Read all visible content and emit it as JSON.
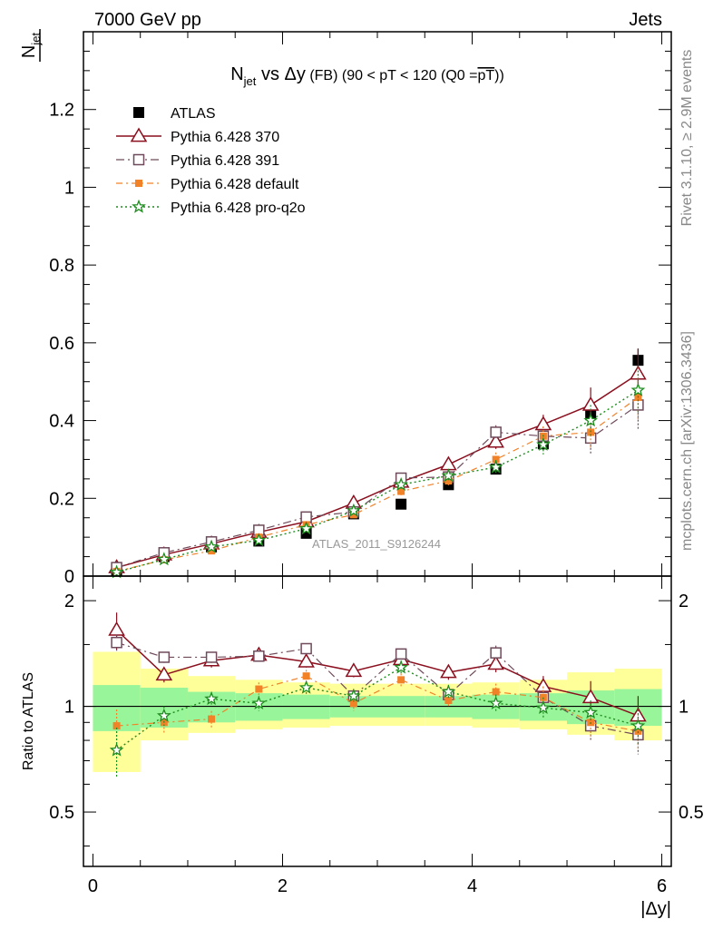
{
  "header": {
    "left": "7000 GeV pp",
    "right": "Jets"
  },
  "side_labels": {
    "rivet": "Rivet 3.1.10, ≥ 2.9M events",
    "mcplots": "mcplots.cern.ch [arXiv:1306.3436]"
  },
  "watermark": "ATLAS_2011_S9126244",
  "colors": {
    "ATLAS": "#000000",
    "p370": "#8b0f1e",
    "p391": "#6e4a5a",
    "default": "#f28228",
    "proq2o": "#1e8c1e",
    "band_inner": "#99f599",
    "band_outer": "#ffff99"
  },
  "chart_data": [
    {
      "type": "scatter",
      "title": {
        "main": "N",
        "main_sub": "jet",
        "mid": " vs Δy",
        "rest": " (FB) (90 < pT < 120 (Q0 =",
        "over": "pT",
        "end": "))"
      },
      "ylabel": {
        "num": "N",
        "num_sub": "jet",
        "den": ""
      },
      "xlim": [
        -0.1,
        6.1
      ],
      "ylim": [
        0,
        1.4
      ],
      "yticks": [
        0,
        0.2,
        0.4,
        0.6,
        0.8,
        1,
        1.2
      ],
      "ytick_labels": [
        "0",
        "0.2",
        "0.4",
        "0.6",
        "0.8",
        "1",
        "1.2"
      ],
      "legend_position": "top-left",
      "legend": [
        {
          "key": "ATLAS",
          "label": "ATLAS",
          "marker": "filled-square"
        },
        {
          "key": "p370",
          "label": "Pythia 6.428 370",
          "marker": "open-triangle"
        },
        {
          "key": "p391",
          "label": "Pythia 6.428 391",
          "marker": "open-square"
        },
        {
          "key": "default",
          "label": "Pythia 6.428 default",
          "marker": "filled-small-square"
        },
        {
          "key": "proq2o",
          "label": "Pythia 6.428 pro-q2o",
          "marker": "open-star"
        }
      ],
      "x": [
        0.25,
        0.75,
        1.25,
        1.75,
        2.25,
        2.75,
        3.25,
        3.75,
        4.25,
        4.75,
        5.25,
        5.75
      ],
      "data_errors": [
        0.003,
        0.004,
        0.005,
        0.006,
        0.007,
        0.008,
        0.009,
        0.011,
        0.013,
        0.015,
        0.02,
        0.03
      ],
      "series": [
        {
          "key": "ATLAS",
          "name": "ATLAS",
          "values": [
            0.015,
            0.05,
            0.075,
            0.09,
            0.11,
            0.16,
            0.185,
            0.235,
            0.275,
            0.34,
            0.415,
            0.555
          ]
        },
        {
          "key": "p370",
          "name": "Pythia 6.428 370",
          "values": [
            0.022,
            0.055,
            0.083,
            0.113,
            0.14,
            0.188,
            0.242,
            0.287,
            0.345,
            0.39,
            0.44,
            0.52
          ],
          "errors": [
            0.003,
            0.004,
            0.005,
            0.006,
            0.007,
            0.008,
            0.01,
            0.012,
            0.018,
            0.025,
            0.045,
            0.065
          ]
        },
        {
          "key": "p391",
          "name": "Pythia 6.428 391",
          "values": [
            0.022,
            0.06,
            0.088,
            0.118,
            0.152,
            0.165,
            0.252,
            0.255,
            0.37,
            0.36,
            0.355,
            0.44
          ],
          "errors": [
            0.003,
            0.004,
            0.005,
            0.006,
            0.007,
            0.008,
            0.01,
            0.012,
            0.018,
            0.025,
            0.04,
            0.065
          ]
        },
        {
          "key": "default",
          "name": "Pythia 6.428 default",
          "values": [
            0.012,
            0.042,
            0.065,
            0.1,
            0.132,
            0.158,
            0.218,
            0.245,
            0.3,
            0.36,
            0.37,
            0.46
          ],
          "errors": [
            0.003,
            0.004,
            0.005,
            0.006,
            0.007,
            0.008,
            0.01,
            0.012,
            0.018,
            0.025,
            0.04,
            0.06
          ]
        },
        {
          "key": "proq2o",
          "name": "Pythia 6.428 pro-q2o",
          "values": [
            0.01,
            0.043,
            0.075,
            0.092,
            0.122,
            0.168,
            0.235,
            0.258,
            0.28,
            0.338,
            0.4,
            0.478
          ],
          "errors": [
            0.003,
            0.004,
            0.005,
            0.006,
            0.007,
            0.008,
            0.01,
            0.012,
            0.018,
            0.025,
            0.04,
            0.06
          ]
        }
      ]
    },
    {
      "type": "scatter",
      "ylabel": "Ratio to ATLAS",
      "xlabel": "|Δy|",
      "xlim": [
        -0.1,
        6.1
      ],
      "xticks": [
        0,
        2,
        4,
        6
      ],
      "xtick_labels": [
        "0",
        "2",
        "4",
        "6"
      ],
      "ylim": [
        0.35,
        2.35
      ],
      "yticks": [
        0.5,
        1,
        2
      ],
      "ytick_labels": [
        "0.5",
        "1",
        "2"
      ],
      "reference_line": 1,
      "x_edges": [
        0,
        0.5,
        1,
        1.5,
        2,
        2.5,
        3,
        3.5,
        4,
        4.5,
        5,
        5.5,
        6
      ],
      "band_inner": {
        "lower": [
          0.85,
          0.87,
          0.9,
          0.91,
          0.92,
          0.93,
          0.93,
          0.93,
          0.92,
          0.91,
          0.89,
          0.88
        ],
        "upper": [
          1.15,
          1.13,
          1.1,
          1.09,
          1.08,
          1.07,
          1.07,
          1.07,
          1.08,
          1.09,
          1.11,
          1.12
        ]
      },
      "band_outer": {
        "lower": [
          0.65,
          0.8,
          0.84,
          0.86,
          0.87,
          0.88,
          0.88,
          0.88,
          0.87,
          0.86,
          0.83,
          0.8
        ],
        "upper": [
          1.43,
          1.28,
          1.22,
          1.19,
          1.17,
          1.16,
          1.16,
          1.16,
          1.17,
          1.19,
          1.25,
          1.28
        ]
      },
      "series": [
        {
          "key": "p370",
          "name": "Pythia 6.428 370",
          "values": [
            1.65,
            1.23,
            1.35,
            1.4,
            1.34,
            1.26,
            1.36,
            1.25,
            1.32,
            1.14,
            1.06,
            0.94
          ],
          "errors": [
            0.2,
            0.06,
            0.06,
            0.05,
            0.05,
            0.05,
            0.06,
            0.06,
            0.07,
            0.08,
            0.12,
            0.13
          ]
        },
        {
          "key": "p391",
          "name": "Pythia 6.428 391",
          "values": [
            1.52,
            1.38,
            1.38,
            1.39,
            1.46,
            1.07,
            1.41,
            1.08,
            1.42,
            1.06,
            0.88,
            0.83
          ],
          "errors": [
            0.08,
            0.05,
            0.05,
            0.05,
            0.05,
            0.05,
            0.05,
            0.05,
            0.07,
            0.08,
            0.08,
            0.1
          ]
        },
        {
          "key": "default",
          "name": "Pythia 6.428 default",
          "values": [
            0.88,
            0.9,
            0.92,
            1.12,
            1.22,
            1.02,
            1.19,
            1.04,
            1.1,
            1.06,
            0.9,
            0.85
          ],
          "errors": [
            0.1,
            0.06,
            0.05,
            0.05,
            0.05,
            0.05,
            0.05,
            0.05,
            0.06,
            0.08,
            0.08,
            0.1
          ]
        },
        {
          "key": "proq2o",
          "name": "Pythia 6.428 pro-q2o",
          "values": [
            0.75,
            0.94,
            1.05,
            1.02,
            1.13,
            1.07,
            1.29,
            1.1,
            1.02,
            0.99,
            0.96,
            0.88
          ],
          "errors": [
            0.12,
            0.06,
            0.05,
            0.05,
            0.05,
            0.05,
            0.06,
            0.05,
            0.06,
            0.07,
            0.08,
            0.1
          ]
        }
      ]
    }
  ]
}
